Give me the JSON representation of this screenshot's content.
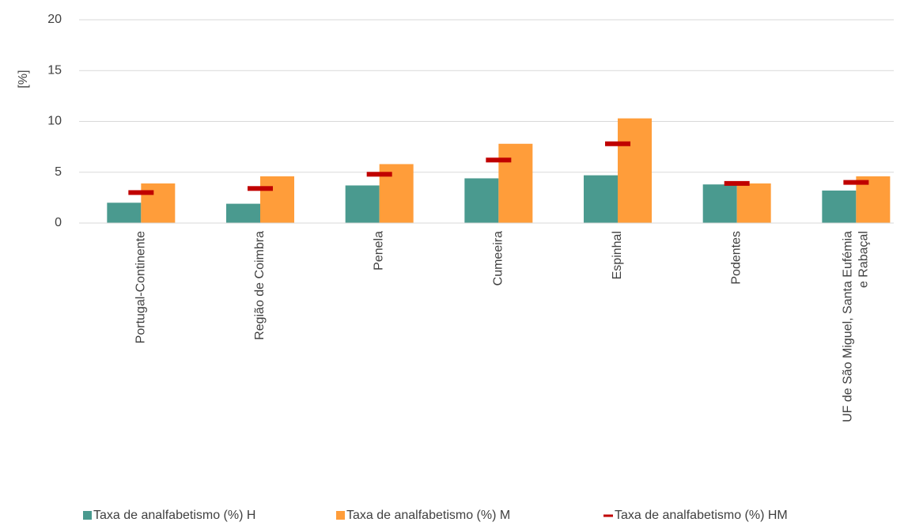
{
  "chart_data": {
    "type": "bar",
    "y_label": "[%]",
    "categories": [
      "Portugal-Continente",
      "Região de Coimbra",
      "Penela",
      "Cumeeira",
      "Espinhal",
      "Podentes",
      "UF de São Miguel, Santa Eufémia\ne Rabaçal"
    ],
    "series": [
      {
        "name": "Taxa de analfabetismo (%)  H",
        "color": "#4a9a8f",
        "kind": "bar",
        "values": [
          2.0,
          1.9,
          3.7,
          4.4,
          4.7,
          3.8,
          3.2
        ]
      },
      {
        "name": "Taxa de analfabetismo (%)  M",
        "color": "#ff9d3a",
        "kind": "bar",
        "values": [
          3.9,
          4.6,
          5.8,
          7.8,
          10.3,
          3.9,
          4.6
        ]
      },
      {
        "name": "Taxa de analfabetismo (%)  HM",
        "color": "#c00000",
        "kind": "marker",
        "values": [
          3.0,
          3.4,
          4.8,
          6.2,
          7.8,
          3.9,
          4.0
        ]
      }
    ],
    "ylim": [
      0,
      20
    ],
    "yticks": [
      0,
      5,
      10,
      15,
      20
    ],
    "grid": true,
    "legend": "bottom"
  }
}
